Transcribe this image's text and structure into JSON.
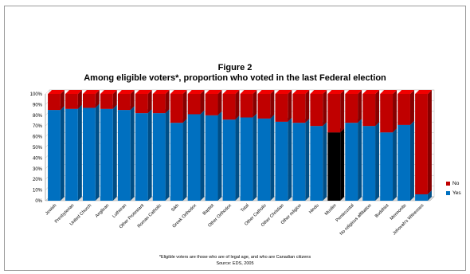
{
  "chart_data": {
    "type": "bar",
    "stacked": true,
    "title": "Figure  2",
    "subtitle": "Among eligible voters*, proportion who voted in the last Federal election",
    "categories": [
      "Jewish",
      "Presbyterian",
      "United Church",
      "Anglican",
      "Lutheran",
      "Other Protestant",
      "Roman Catholic",
      "Sikh",
      "Greek Orthodox",
      "Baptist",
      "Other Orthodox",
      "Total",
      "Other Catholic",
      "Other Christian",
      "Other religion",
      "Hindu",
      "Muslim",
      "Pentecostal",
      "No religious affiliation",
      "Buddhist",
      "Mennonite",
      "Jehovah's Witnesses"
    ],
    "series": [
      {
        "name": "Yes",
        "color": "#0070C0",
        "values": [
          85,
          86,
          87,
          86,
          85,
          82,
          82,
          73,
          81,
          80,
          76,
          78,
          77,
          74,
          73,
          70,
          64,
          73,
          70,
          64,
          71,
          6
        ]
      },
      {
        "name": "No",
        "color": "#C00000",
        "values": [
          15,
          14,
          13,
          14,
          15,
          18,
          18,
          27,
          19,
          20,
          24,
          22,
          23,
          26,
          27,
          30,
          36,
          27,
          30,
          36,
          29,
          94
        ]
      }
    ],
    "highlight": {
      "category": "Muslim",
      "color": "#000000"
    },
    "yticks": [
      "0%",
      "10%",
      "20%",
      "30%",
      "40%",
      "50%",
      "60%",
      "70%",
      "80%",
      "90%",
      "100%"
    ],
    "ylim": [
      0,
      100
    ],
    "legend_position": "right"
  },
  "footnote": "*Eligible voters are those who are of legal age, and who are Canadian citizens",
  "source": "Source: EDS, 2005"
}
